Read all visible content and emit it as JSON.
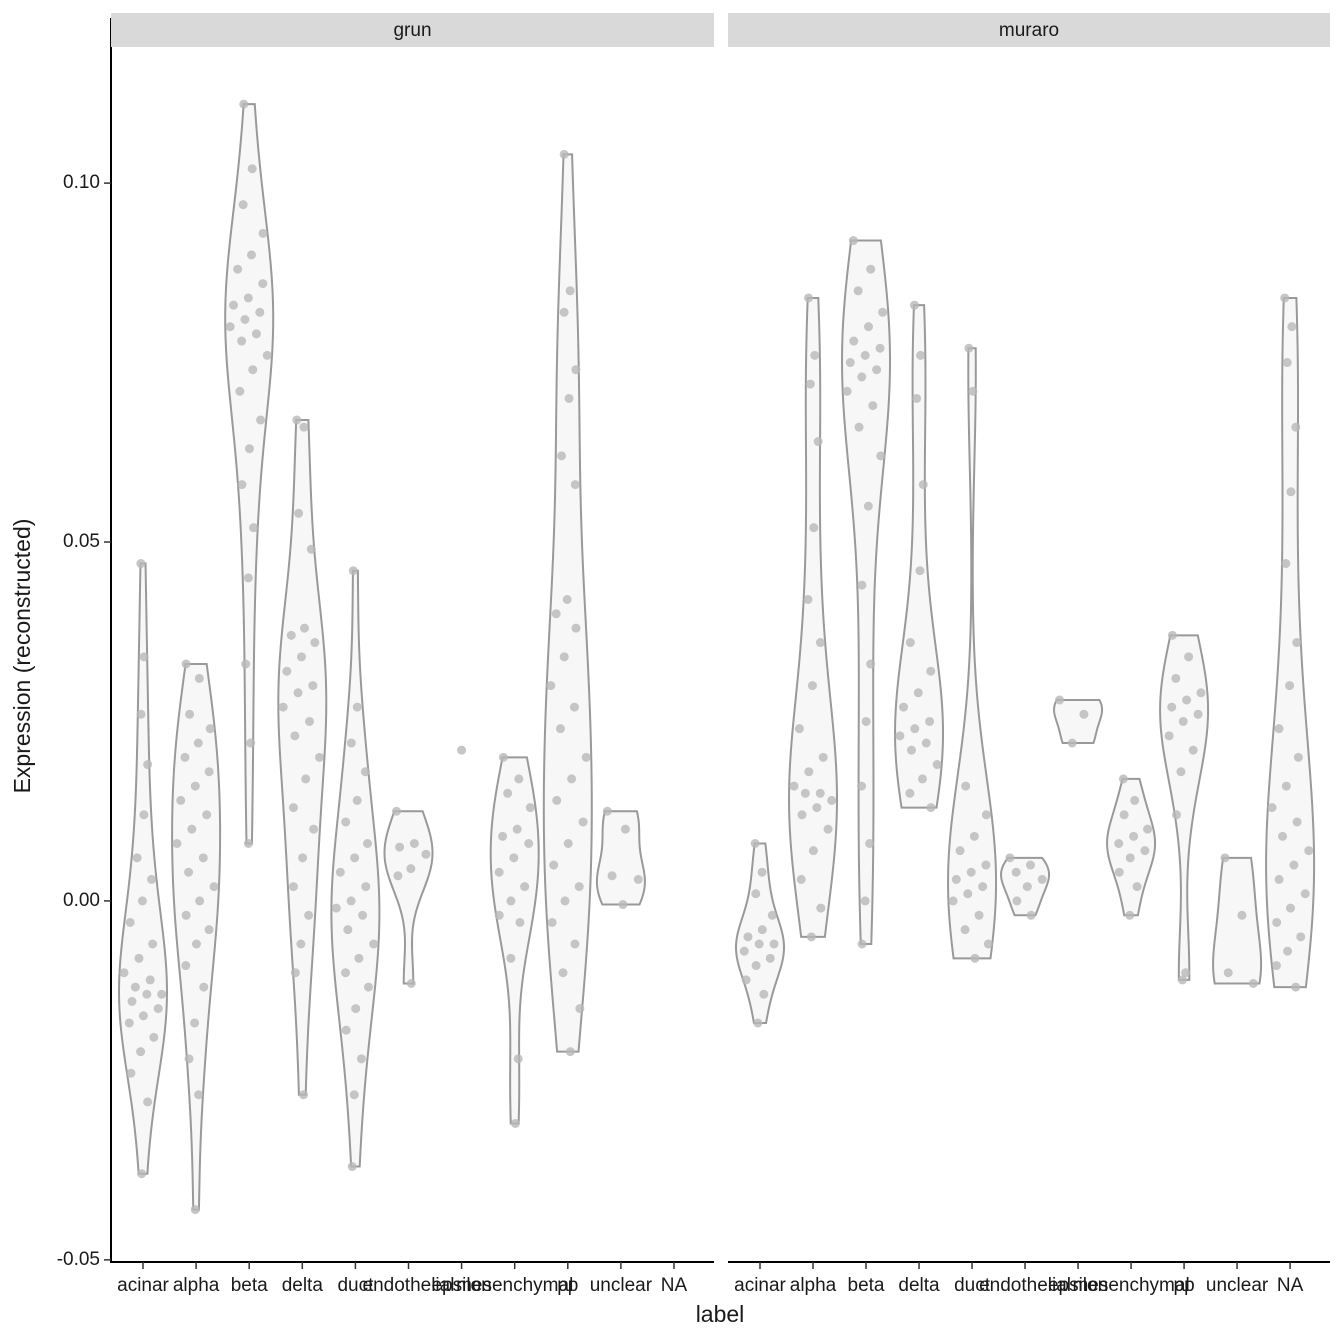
{
  "chart_data": {
    "type": "violin",
    "xlabel": "label",
    "ylabel": "Expression (reconstructed)",
    "ylim": [
      -0.0503,
      0.123
    ],
    "yticks": [
      {
        "value": -0.05,
        "label": "-0.05"
      },
      {
        "value": 0,
        "label": "0.00"
      },
      {
        "value": 0.05,
        "label": "0.05"
      },
      {
        "value": 0.1,
        "label": "0.10"
      }
    ],
    "color": "#999999",
    "point_color": "#b8b8b8",
    "fill": "#f7f7f7",
    "categories": [
      "acinar",
      "alpha",
      "beta",
      "delta",
      "duct",
      "endothelial",
      "epsilon",
      "mesenchymal",
      "pp",
      "unclear",
      "NA"
    ],
    "panels": [
      {
        "title": "grun",
        "values": [
          [
            0.047,
            0.034,
            0.026,
            0.019,
            0.012,
            0.006,
            0.003,
            0.0,
            -0.003,
            -0.006,
            -0.008,
            -0.01,
            -0.011,
            -0.012,
            -0.013,
            -0.013,
            -0.014,
            -0.015,
            -0.016,
            -0.017,
            -0.019,
            -0.021,
            -0.024,
            -0.028,
            -0.038
          ],
          [
            0.033,
            0.031,
            0.026,
            0.024,
            0.022,
            0.02,
            0.018,
            0.016,
            0.014,
            0.012,
            0.01,
            0.008,
            0.006,
            0.004,
            0.002,
            0.0,
            -0.002,
            -0.004,
            -0.006,
            -0.009,
            -0.012,
            -0.017,
            -0.022,
            -0.027,
            -0.043
          ],
          [
            0.111,
            0.102,
            0.097,
            0.093,
            0.09,
            0.088,
            0.086,
            0.084,
            0.083,
            0.082,
            0.081,
            0.08,
            0.079,
            0.078,
            0.076,
            0.074,
            0.071,
            0.067,
            0.063,
            0.058,
            0.052,
            0.045,
            0.033,
            0.022,
            0.008
          ],
          [
            0.067,
            0.066,
            0.054,
            0.049,
            0.038,
            0.037,
            0.036,
            0.034,
            0.032,
            0.03,
            0.029,
            0.027,
            0.025,
            0.023,
            0.02,
            0.017,
            0.013,
            0.01,
            0.006,
            0.002,
            -0.002,
            -0.006,
            -0.01,
            -0.027
          ],
          [
            0.046,
            0.027,
            0.022,
            0.018,
            0.014,
            0.011,
            0.008,
            0.006,
            0.004,
            0.002,
            0.0,
            -0.001,
            -0.002,
            -0.004,
            -0.006,
            -0.008,
            -0.01,
            -0.012,
            -0.015,
            -0.018,
            -0.022,
            -0.027,
            -0.037
          ],
          [
            0.0125,
            0.008,
            0.0075,
            0.0065,
            0.0045,
            0.0035,
            -0.0115
          ],
          [
            0.021
          ],
          [
            0.02,
            0.017,
            0.015,
            0.013,
            0.01,
            0.009,
            0.008,
            0.006,
            0.004,
            0.002,
            0.0,
            -0.002,
            -0.003,
            -0.008,
            -0.022,
            -0.031
          ],
          [
            0.104,
            0.085,
            0.082,
            0.074,
            0.07,
            0.062,
            0.058,
            0.042,
            0.04,
            0.038,
            0.034,
            0.03,
            0.027,
            0.024,
            0.02,
            0.017,
            0.014,
            0.011,
            0.008,
            0.005,
            0.002,
            0.0,
            -0.003,
            -0.006,
            -0.01,
            -0.015,
            -0.021
          ],
          [
            0.0125,
            0.01,
            0.0035,
            0.003,
            -0.0005
          ],
          []
        ]
      },
      {
        "title": "muraro",
        "values": [
          [
            0.008,
            0.004,
            0.001,
            -0.002,
            -0.004,
            -0.005,
            -0.006,
            -0.006,
            -0.007,
            -0.008,
            -0.009,
            -0.011,
            -0.013,
            -0.017
          ],
          [
            0.084,
            0.076,
            0.072,
            0.064,
            0.052,
            0.042,
            0.036,
            0.03,
            0.024,
            0.02,
            0.018,
            0.016,
            0.015,
            0.015,
            0.014,
            0.013,
            0.012,
            0.01,
            0.007,
            0.003,
            -0.001,
            -0.005
          ],
          [
            0.092,
            0.088,
            0.085,
            0.082,
            0.08,
            0.078,
            0.077,
            0.076,
            0.075,
            0.074,
            0.073,
            0.071,
            0.069,
            0.066,
            0.062,
            0.055,
            0.044,
            0.033,
            0.025,
            0.016,
            0.008,
            0.0,
            -0.006
          ],
          [
            0.083,
            0.076,
            0.07,
            0.058,
            0.046,
            0.036,
            0.032,
            0.029,
            0.027,
            0.025,
            0.024,
            0.023,
            0.022,
            0.021,
            0.019,
            0.017,
            0.015,
            0.013
          ],
          [
            0.077,
            0.071,
            0.016,
            0.012,
            0.009,
            0.007,
            0.005,
            0.004,
            0.003,
            0.002,
            0.001,
            0.0,
            -0.002,
            -0.004,
            -0.006,
            -0.008
          ],
          [
            0.006,
            0.005,
            0.004,
            0.003,
            0.002,
            0.0,
            -0.002
          ],
          [
            0.028,
            0.026,
            0.022
          ],
          [
            0.017,
            0.014,
            0.012,
            0.01,
            0.009,
            0.008,
            0.007,
            0.006,
            0.004,
            0.002,
            -0.002
          ],
          [
            0.037,
            0.034,
            0.031,
            0.029,
            0.028,
            0.027,
            0.026,
            0.025,
            0.023,
            0.021,
            0.018,
            0.012,
            -0.01,
            -0.011
          ],
          [
            0.006,
            -0.002,
            -0.01,
            -0.0115
          ],
          [
            0.084,
            0.08,
            0.075,
            0.066,
            0.057,
            0.047,
            0.036,
            0.03,
            0.024,
            0.02,
            0.016,
            0.013,
            0.011,
            0.009,
            0.007,
            0.005,
            0.003,
            0.001,
            -0.001,
            -0.003,
            -0.005,
            -0.007,
            -0.009,
            -0.012
          ]
        ]
      }
    ]
  }
}
